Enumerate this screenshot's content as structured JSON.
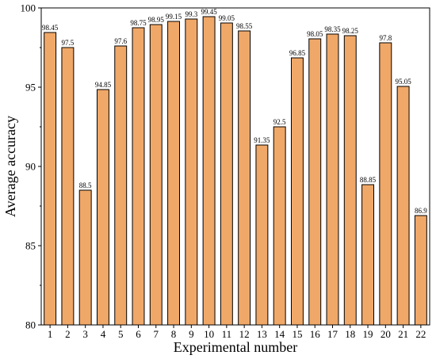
{
  "chart_data": {
    "type": "bar",
    "categories": [
      "1",
      "2",
      "3",
      "4",
      "5",
      "6",
      "7",
      "8",
      "9",
      "10",
      "11",
      "12",
      "13",
      "14",
      "15",
      "16",
      "17",
      "18",
      "19",
      "20",
      "21",
      "22"
    ],
    "values": [
      98.45,
      97.5,
      88.5,
      94.85,
      97.6,
      98.75,
      98.95,
      99.15,
      99.3,
      99.45,
      99.05,
      98.55,
      91.35,
      92.5,
      96.85,
      98.05,
      98.35,
      98.25,
      88.85,
      97.8,
      95.05,
      86.9
    ],
    "data_labels": [
      "98.45",
      "97.5",
      "88.5",
      "94.85",
      "97.6",
      "98.75",
      "98.95",
      "99.15",
      "99.3",
      "99.45",
      "99.05",
      "98.55",
      "91.35",
      "92.5",
      "96.85",
      "98.05",
      "98.35",
      "98.25",
      "88.85",
      "97.8",
      "95.05",
      "86.9"
    ],
    "xlabel": "Experimental number",
    "ylabel": "Average accuracy",
    "ylim": [
      80,
      100
    ],
    "yticks": [
      80,
      85,
      90,
      95,
      100
    ],
    "ytick_labels": [
      "80",
      "85",
      "90",
      "95",
      "100"
    ],
    "bar_color": "#f0a868",
    "grid": false,
    "legend": "none"
  }
}
